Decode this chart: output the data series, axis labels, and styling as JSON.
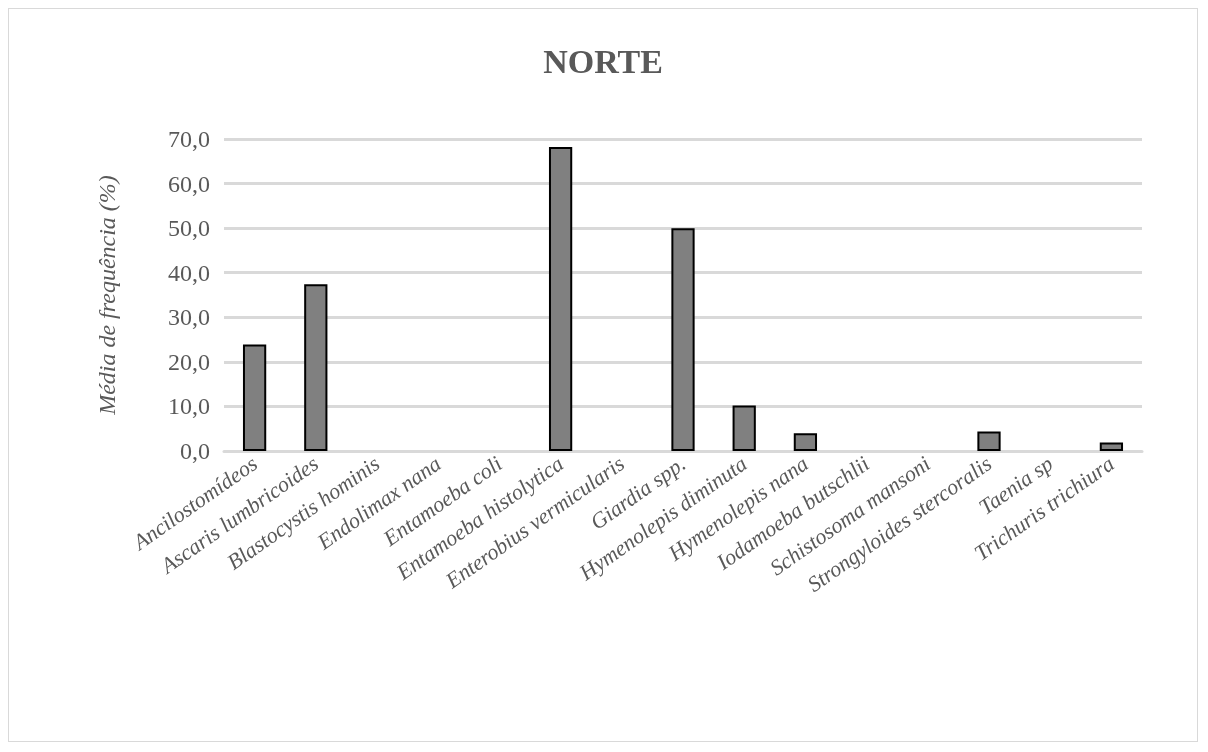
{
  "chart_data": {
    "type": "bar",
    "title": "NORTE",
    "ylabel": "Média de frequência (%)",
    "categories": [
      "Ancilostomídeos",
      "Ascaris lumbricoides",
      "Blastocystis hominis",
      "Endolimax nana",
      "Entamoeba coli",
      "Entamoeba histolytica",
      "Enterobius vermicularis",
      "Giardia spp.",
      "Hymenolepis diminuta",
      "Hymenolepis nana",
      "Iodamoeba butschlii",
      "Schistosoma mansoni",
      "Strongyloides stercoralis",
      "Taenia sp",
      "Trichuris trichiura"
    ],
    "values": [
      23.9,
      37.4,
      0,
      0,
      0,
      68.2,
      0,
      50,
      10.2,
      4,
      0,
      0,
      4.4,
      0,
      1.9
    ],
    "color": "#808080",
    "ylim": [
      0,
      70
    ],
    "yticks": [
      {
        "value": 0,
        "label": "0,0"
      },
      {
        "value": 10,
        "label": "10,0"
      },
      {
        "value": 20,
        "label": "20,0"
      },
      {
        "value": 30,
        "label": "30,0"
      },
      {
        "value": 40,
        "label": "40,0"
      },
      {
        "value": 50,
        "label": "50,0"
      },
      {
        "value": 60,
        "label": "60,0"
      },
      {
        "value": 70,
        "label": "70,0"
      }
    ],
    "grid": "y"
  }
}
